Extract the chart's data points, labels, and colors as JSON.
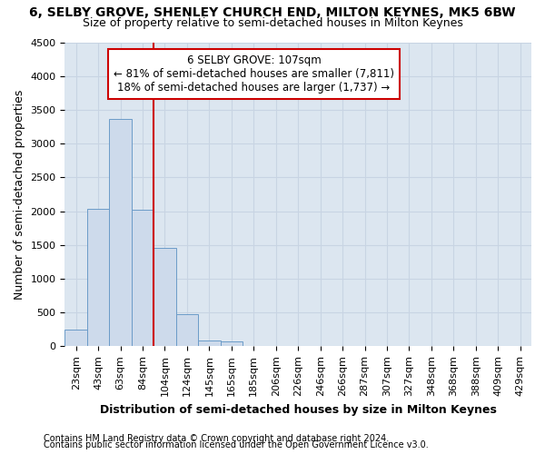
{
  "title": "6, SELBY GROVE, SHENLEY CHURCH END, MILTON KEYNES, MK5 6BW",
  "subtitle": "Size of property relative to semi-detached houses in Milton Keynes",
  "xlabel": "Distribution of semi-detached houses by size in Milton Keynes",
  "ylabel": "Number of semi-detached properties",
  "footer1": "Contains HM Land Registry data © Crown copyright and database right 2024.",
  "footer2": "Contains public sector information licensed under the Open Government Licence v3.0.",
  "categories": [
    "23sqm",
    "43sqm",
    "63sqm",
    "84sqm",
    "104sqm",
    "124sqm",
    "145sqm",
    "165sqm",
    "185sqm",
    "206sqm",
    "226sqm",
    "246sqm",
    "266sqm",
    "287sqm",
    "307sqm",
    "327sqm",
    "348sqm",
    "368sqm",
    "388sqm",
    "409sqm",
    "429sqm"
  ],
  "values": [
    250,
    2030,
    3370,
    2020,
    1450,
    470,
    90,
    65,
    0,
    0,
    0,
    0,
    0,
    0,
    0,
    0,
    0,
    0,
    0,
    0,
    0
  ],
  "bar_color": "#cddaeb",
  "bar_edge_color": "#6b9bc8",
  "vline_color": "#cc0000",
  "annotation_line1": "6 SELBY GROVE: 107sqm",
  "annotation_line2": "← 81% of semi-detached houses are smaller (7,811)",
  "annotation_line3": "18% of semi-detached houses are larger (1,737) →",
  "annotation_box_color": "#ffffff",
  "annotation_border_color": "#cc0000",
  "ylim": [
    0,
    4500
  ],
  "yticks": [
    0,
    500,
    1000,
    1500,
    2000,
    2500,
    3000,
    3500,
    4000,
    4500
  ],
  "grid_color": "#c8d4e3",
  "bg_color": "#dce6f0",
  "title_fontsize": 10,
  "subtitle_fontsize": 9,
  "axis_label_fontsize": 9,
  "tick_fontsize": 8,
  "footer_fontsize": 7
}
